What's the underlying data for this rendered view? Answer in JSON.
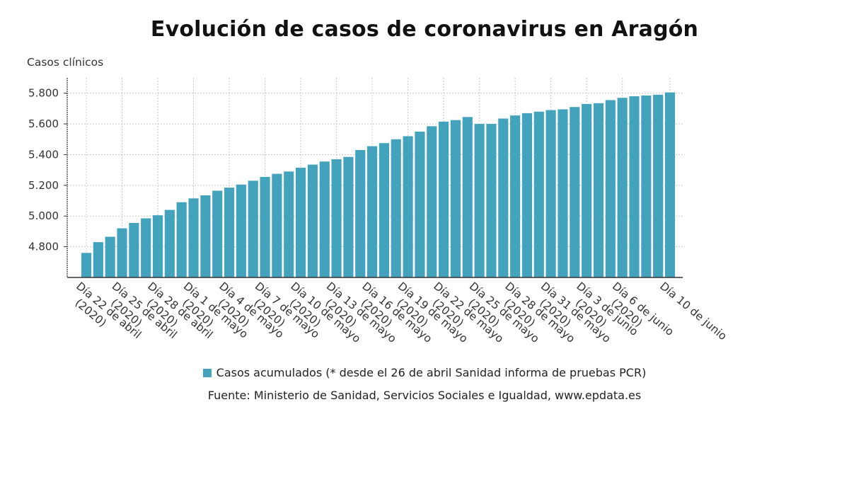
{
  "title": "Evolución de casos de coronavirus en Aragón",
  "source": "Fuente: Ministerio de Sanidad, Servicios Sociales e Igualdad, www.epdata.es",
  "colors": {
    "bar": "#43a3bd",
    "grid": "#c8c8c8",
    "axis": "#333333"
  },
  "chart_data": {
    "type": "bar",
    "ylabel": "Casos clínicos",
    "xlabel": "",
    "ylim": [
      4600,
      5900
    ],
    "yticks": [
      {
        "value": 4800,
        "label": "4.800"
      },
      {
        "value": 5000,
        "label": "5.000"
      },
      {
        "value": 5200,
        "label": "5.200"
      },
      {
        "value": 5400,
        "label": "5.400"
      },
      {
        "value": 5600,
        "label": "5.600"
      },
      {
        "value": 5800,
        "label": "5.800"
      }
    ],
    "grid": true,
    "legend_position": "bottom",
    "series": [
      {
        "name": "Casos acumulados (* desde el 26 de abril Sanidad informa de pruebas PCR)",
        "values": [
          4760,
          4830,
          4865,
          4920,
          4955,
          4985,
          5005,
          5040,
          5090,
          5115,
          5135,
          5165,
          5185,
          5205,
          5230,
          5255,
          5275,
          5290,
          5315,
          5335,
          5355,
          5370,
          5385,
          5430,
          5455,
          5475,
          5500,
          5520,
          5550,
          5585,
          5615,
          5625,
          5645,
          5600,
          5600,
          5635,
          5655,
          5670,
          5680,
          5690,
          5695,
          5710,
          5730,
          5735,
          5755,
          5770,
          5780,
          5785,
          5790,
          5805
        ]
      }
    ],
    "tick_labels": [
      {
        "index": 0,
        "lines": [
          "Día 22 de abril",
          "(2020)"
        ]
      },
      {
        "index": 3,
        "lines": [
          "Día 25 de abril",
          "(2020)"
        ]
      },
      {
        "index": 6,
        "lines": [
          "Día 28 de abril",
          "(2020)"
        ]
      },
      {
        "index": 9,
        "lines": [
          "Día 1 de mayo",
          "(2020)"
        ]
      },
      {
        "index": 12,
        "lines": [
          "Día 4 de mayo",
          "(2020)"
        ]
      },
      {
        "index": 15,
        "lines": [
          "Día 7 de mayo",
          "(2020)"
        ]
      },
      {
        "index": 18,
        "lines": [
          "Día 10 de mayo",
          "(2020)"
        ]
      },
      {
        "index": 21,
        "lines": [
          "Día 13 de mayo",
          "(2020)"
        ]
      },
      {
        "index": 24,
        "lines": [
          "Día 16 de mayo",
          "(2020)"
        ]
      },
      {
        "index": 27,
        "lines": [
          "Día 19 de mayo",
          "(2020)"
        ]
      },
      {
        "index": 30,
        "lines": [
          "Día 22 de mayo",
          "(2020)"
        ]
      },
      {
        "index": 33,
        "lines": [
          "Día 25 de mayo",
          "(2020)"
        ]
      },
      {
        "index": 36,
        "lines": [
          "Día 28 de mayo",
          "(2020)"
        ]
      },
      {
        "index": 39,
        "lines": [
          "Día 31 de mayo",
          "(2020)"
        ]
      },
      {
        "index": 42,
        "lines": [
          "Día 3 de junio",
          "(2020)"
        ]
      },
      {
        "index": 45,
        "lines": [
          "Día 6 de junio",
          "(2020)"
        ]
      },
      {
        "index": 49,
        "lines": [
          "Día 10 de junio"
        ]
      }
    ]
  }
}
